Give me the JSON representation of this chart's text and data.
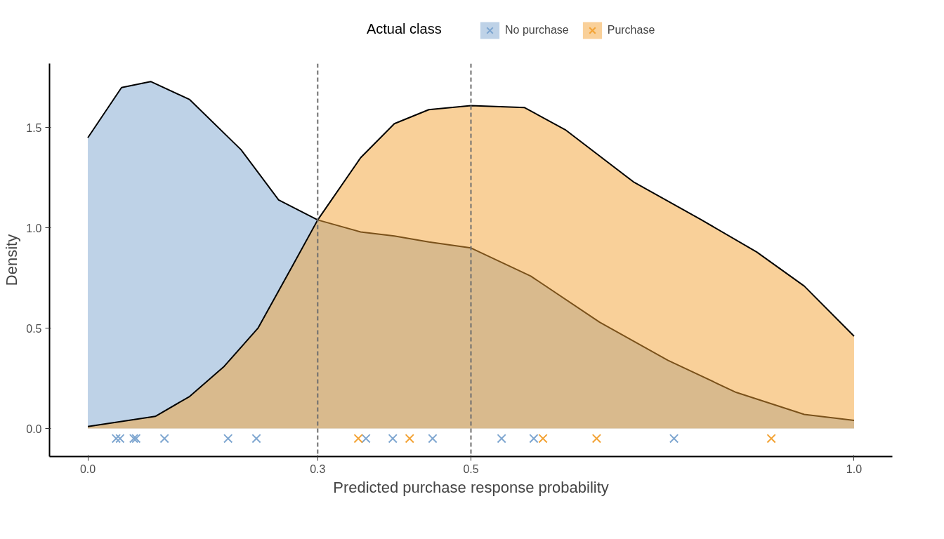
{
  "chart_data": {
    "type": "area",
    "xlabel": "Predicted purchase response probability",
    "ylabel": "Density",
    "legend_title": "Actual class",
    "legend": "top",
    "grid": false,
    "xlim": [
      -0.05,
      1.05
    ],
    "ylim": [
      -0.14,
      1.82
    ],
    "xticks": [
      {
        "value": 0,
        "label": "0.0"
      },
      0.3,
      0.5,
      {
        "value": 1,
        "label": "1.0"
      }
    ],
    "yticks": [
      {
        "value": 0,
        "label": "0.0"
      },
      0.5,
      {
        "value": 1,
        "label": "1.0"
      },
      1.5
    ],
    "ref_lines": [
      {
        "axis": "x",
        "value": 0.3,
        "color": "#6e6e6e",
        "line_style": "dashed"
      },
      {
        "axis": "x",
        "value": 0.5,
        "color": "#6e6e6e",
        "line_style": "dashed"
      }
    ],
    "series": [
      {
        "name": "No purchase",
        "color": "#7ea6d0",
        "x": [
          0,
          0.044,
          0.082,
          0.133,
          0.2,
          0.249,
          0.3,
          0.356,
          0.4,
          0.445,
          0.5,
          0.578,
          0.668,
          0.757,
          0.846,
          0.935,
          1.0
        ],
        "values": [
          1.45,
          1.7,
          1.73,
          1.64,
          1.39,
          1.14,
          1.04,
          0.98,
          0.96,
          0.93,
          0.9,
          0.76,
          0.53,
          0.34,
          0.18,
          0.07,
          0.04
        ]
      },
      {
        "name": "Purchase",
        "color": "#f3a233",
        "x": [
          0,
          0.088,
          0.133,
          0.178,
          0.222,
          0.267,
          0.3,
          0.356,
          0.4,
          0.445,
          0.5,
          0.57,
          0.623,
          0.712,
          0.801,
          0.873,
          0.935,
          1.0
        ],
        "values": [
          0.01,
          0.06,
          0.16,
          0.31,
          0.5,
          0.81,
          1.04,
          1.35,
          1.52,
          1.59,
          1.61,
          1.6,
          1.49,
          1.23,
          1.04,
          0.88,
          0.71,
          0.46
        ]
      },
      {
        "type": "scatter",
        "marker": "cross",
        "color": "#7ea6d0",
        "x": [
          0.037,
          0.042,
          0.06,
          0.063,
          0.1,
          0.183,
          0.22,
          0.363,
          0.398,
          0.45,
          0.54,
          0.582,
          0.765
        ],
        "values": [
          -0.05,
          -0.05,
          -0.05,
          -0.05,
          -0.05,
          -0.05,
          -0.05,
          -0.05,
          -0.05,
          -0.05,
          -0.05,
          -0.05,
          -0.05
        ]
      },
      {
        "type": "scatter",
        "marker": "cross",
        "color": "#f3a233",
        "x": [
          0.353,
          0.42,
          0.594,
          0.664,
          0.892
        ],
        "values": [
          -0.05,
          -0.05,
          -0.05,
          -0.05,
          -0.05
        ]
      }
    ]
  }
}
